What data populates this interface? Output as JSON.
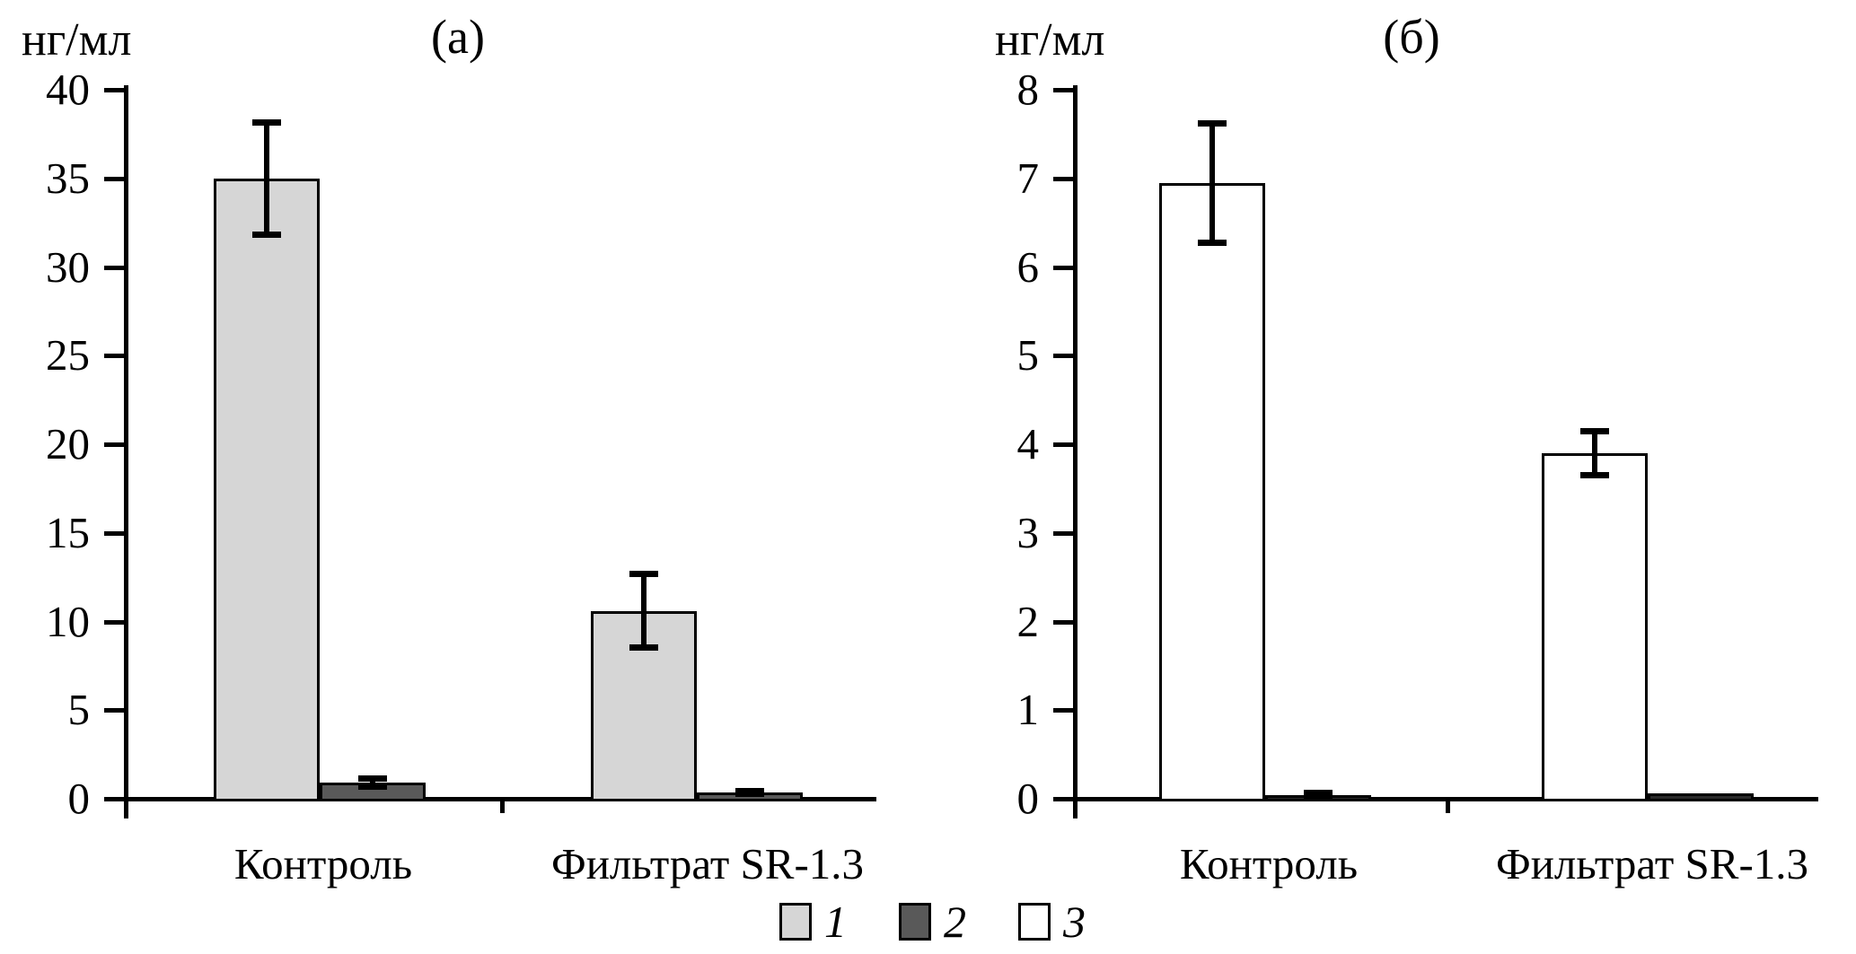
{
  "figure": {
    "unit_label": "нг/мл",
    "legend": [
      {
        "id": "1",
        "label": "1",
        "color": "#d6d6d6"
      },
      {
        "id": "2",
        "label": "2",
        "color": "#595959"
      },
      {
        "id": "3",
        "label": "3",
        "color": "#ffffff"
      }
    ]
  },
  "chart_data": [
    {
      "type": "bar",
      "panel": "(а)",
      "ylabel": "нг/мл",
      "ylim": [
        0,
        40
      ],
      "yticks": [
        0,
        5,
        10,
        15,
        20,
        25,
        30,
        35,
        40
      ],
      "grid": false,
      "legend_position": "bottom-shared",
      "categories": [
        "Контроль",
        "Фильтрат SR-1.3"
      ],
      "series": [
        {
          "name": "1",
          "color": "#d6d6d6",
          "values": [
            35.0,
            10.6
          ],
          "errors": [
            3.2,
            2.1
          ]
        },
        {
          "name": "2",
          "color": "#595959",
          "values": [
            0.9,
            0.35
          ],
          "errors": [
            0.25,
            0.12
          ]
        }
      ]
    },
    {
      "type": "bar",
      "panel": "(б)",
      "ylabel": "нг/мл",
      "ylim": [
        0,
        8
      ],
      "yticks": [
        0,
        1,
        2,
        3,
        4,
        5,
        6,
        7,
        8
      ],
      "grid": false,
      "legend_position": "bottom-shared",
      "categories": [
        "Контроль",
        "Фильтрат SR-1.3"
      ],
      "series": [
        {
          "name": "3",
          "color": "#ffffff",
          "values": [
            6.95,
            3.9
          ],
          "errors": [
            0.68,
            0.25
          ]
        },
        {
          "name": "2",
          "color": "#2a2a2a",
          "values": [
            0.04,
            0.06
          ],
          "errors": [
            0.035,
            0
          ]
        }
      ]
    }
  ]
}
